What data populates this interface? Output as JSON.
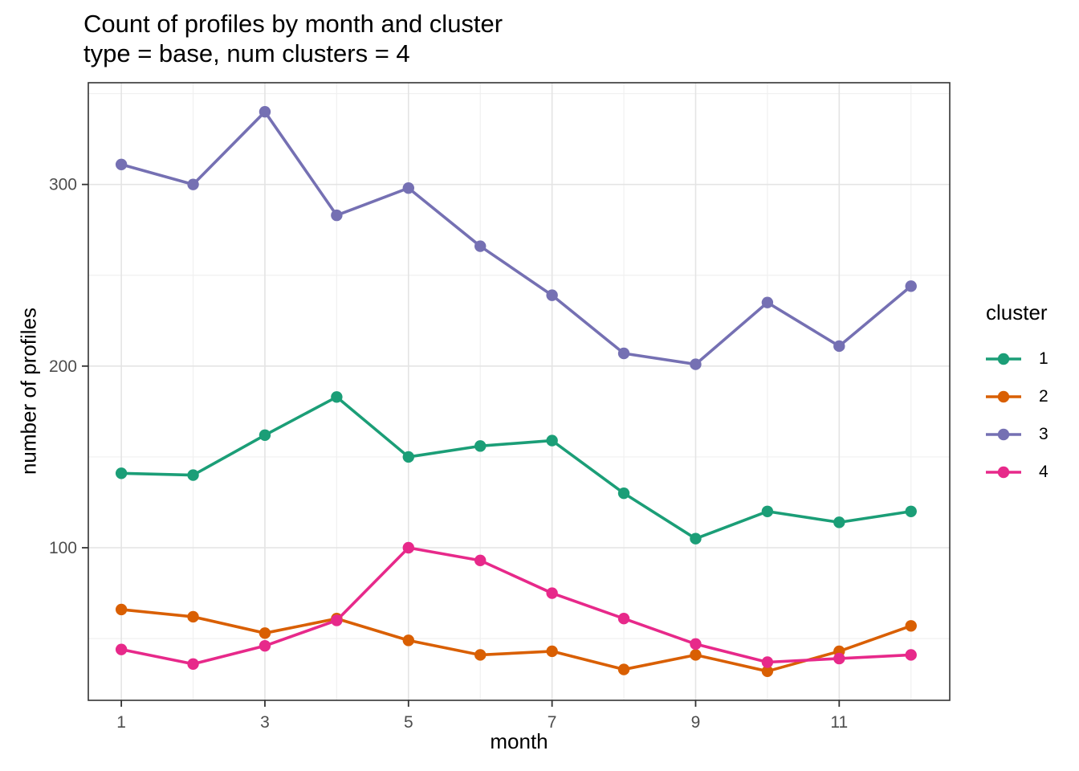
{
  "chart_data": {
    "type": "line",
    "title": "Count of profiles by month and cluster",
    "subtitle": "type = base, num clusters = 4",
    "xlabel": "month",
    "ylabel": "number of profiles",
    "legend_title": "cluster",
    "legend_position": "right",
    "x": [
      1,
      2,
      3,
      4,
      5,
      6,
      7,
      8,
      9,
      10,
      11,
      12
    ],
    "x_ticks": [
      1,
      3,
      5,
      7,
      9,
      11
    ],
    "x_minor": [
      2,
      4,
      6,
      8,
      10,
      12
    ],
    "y_ticks": [
      100,
      200,
      300
    ],
    "y_minor": [
      50,
      150,
      250,
      350
    ],
    "xlim": [
      0.54,
      12.54
    ],
    "ylim": [
      16,
      356
    ],
    "grid": true,
    "series": [
      {
        "name": "1",
        "color": "#1B9E77",
        "values": [
          141,
          140,
          162,
          183,
          150,
          156,
          159,
          130,
          105,
          120,
          114,
          120
        ]
      },
      {
        "name": "2",
        "color": "#D95F02",
        "values": [
          66,
          62,
          53,
          61,
          49,
          41,
          43,
          33,
          41,
          32,
          43,
          57
        ]
      },
      {
        "name": "3",
        "color": "#7570B3",
        "values": [
          311,
          300,
          340,
          283,
          298,
          266,
          239,
          207,
          201,
          235,
          211,
          244
        ]
      },
      {
        "name": "4",
        "color": "#E7298A",
        "values": [
          44,
          36,
          46,
          60,
          100,
          93,
          75,
          61,
          47,
          37,
          39,
          41
        ]
      }
    ],
    "colors": {
      "background": "#FFFFFF",
      "panel_border": "#333333",
      "grid_major": "#E4E4E4",
      "grid_minor": "#F0F0F0",
      "tick": "#333333",
      "axis_text": "#4D4D4D",
      "title_text": "#000000"
    }
  }
}
